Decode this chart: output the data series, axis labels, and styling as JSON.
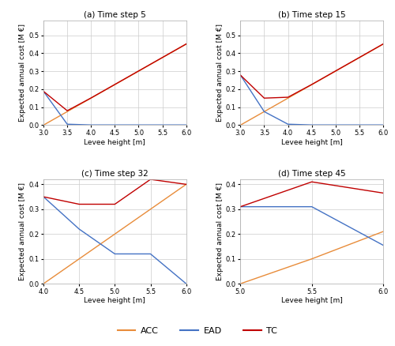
{
  "panels": [
    {
      "title": "(a) Time step 5",
      "xlim": [
        3.0,
        6.0
      ],
      "xticks": [
        3.0,
        3.5,
        4.0,
        4.5,
        5.0,
        5.5,
        6.0
      ],
      "ylim": [
        0,
        0.58
      ],
      "yticks": [
        0.0,
        0.1,
        0.2,
        0.3,
        0.4,
        0.5
      ],
      "ACC": {
        "x": [
          3.0,
          3.5,
          4.0,
          4.5,
          5.0,
          5.5,
          6.0
        ],
        "y": [
          0.0,
          0.075,
          0.15,
          0.225,
          0.3,
          0.375,
          0.45
        ]
      },
      "EAD": {
        "x": [
          3.0,
          3.5,
          4.0,
          4.5,
          5.0,
          5.5,
          6.0
        ],
        "y": [
          0.188,
          0.005,
          0.001,
          0.001,
          0.001,
          0.001,
          0.001
        ]
      },
      "TC": {
        "x": [
          3.0,
          3.5,
          4.0,
          4.5,
          5.0,
          5.5,
          6.0
        ],
        "y": [
          0.188,
          0.08,
          0.151,
          0.226,
          0.301,
          0.376,
          0.451
        ]
      }
    },
    {
      "title": "(b) Time step 15",
      "xlim": [
        3.0,
        6.0
      ],
      "xticks": [
        3.0,
        3.5,
        4.0,
        4.5,
        5.0,
        5.5,
        6.0
      ],
      "ylim": [
        0,
        0.58
      ],
      "yticks": [
        0.0,
        0.1,
        0.2,
        0.3,
        0.4,
        0.5
      ],
      "ACC": {
        "x": [
          3.0,
          3.5,
          4.0,
          4.5,
          5.0,
          5.5,
          6.0
        ],
        "y": [
          0.0,
          0.075,
          0.15,
          0.225,
          0.3,
          0.375,
          0.45
        ]
      },
      "EAD": {
        "x": [
          3.0,
          3.5,
          4.0,
          4.5,
          5.0,
          5.5,
          6.0
        ],
        "y": [
          0.278,
          0.075,
          0.005,
          0.001,
          0.001,
          0.001,
          0.001
        ]
      },
      "TC": {
        "x": [
          3.0,
          3.5,
          4.0,
          4.5,
          5.0,
          5.5,
          6.0
        ],
        "y": [
          0.278,
          0.15,
          0.155,
          0.226,
          0.301,
          0.376,
          0.451
        ]
      }
    },
    {
      "title": "(c) Time step 32",
      "xlim": [
        4.0,
        6.0
      ],
      "xticks": [
        4.0,
        4.5,
        5.0,
        5.5,
        6.0
      ],
      "ylim": [
        0,
        0.42
      ],
      "yticks": [
        0.0,
        0.1,
        0.2,
        0.3,
        0.4
      ],
      "ACC": {
        "x": [
          4.0,
          4.5,
          5.0,
          5.5,
          6.0
        ],
        "y": [
          0.0,
          0.1,
          0.2,
          0.3,
          0.4
        ]
      },
      "EAD": {
        "x": [
          4.0,
          4.5,
          5.0,
          5.5,
          6.0
        ],
        "y": [
          0.35,
          0.22,
          0.12,
          0.12,
          0.0
        ]
      },
      "TC": {
        "x": [
          4.0,
          4.5,
          5.0,
          5.5,
          6.0
        ],
        "y": [
          0.35,
          0.32,
          0.32,
          0.42,
          0.4
        ]
      }
    },
    {
      "title": "(d) Time step 45",
      "xlim": [
        5.0,
        6.0
      ],
      "xticks": [
        5.0,
        5.5,
        6.0
      ],
      "ylim": [
        0,
        0.42
      ],
      "yticks": [
        0.0,
        0.1,
        0.2,
        0.3,
        0.4
      ],
      "ACC": {
        "x": [
          5.0,
          5.5,
          6.0
        ],
        "y": [
          0.0,
          0.1,
          0.21
        ]
      },
      "EAD": {
        "x": [
          5.0,
          5.5,
          6.0
        ],
        "y": [
          0.31,
          0.31,
          0.155
        ]
      },
      "TC": {
        "x": [
          5.0,
          5.5,
          6.0
        ],
        "y": [
          0.31,
          0.41,
          0.365
        ]
      }
    }
  ],
  "colors": {
    "ACC": "#e88c3a",
    "EAD": "#4472c4",
    "TC": "#c00000"
  },
  "ylabel": "Expected annual cost [M €]",
  "xlabel": "Levee height [m]",
  "legend_labels": [
    "ACC",
    "EAD",
    "TC"
  ],
  "background_color": "#ffffff",
  "grid_color": "#cccccc",
  "title_fontsize": 7.5,
  "axis_label_fontsize": 6.5,
  "tick_fontsize": 6.0,
  "legend_fontsize": 8.0,
  "linewidth": 1.0
}
